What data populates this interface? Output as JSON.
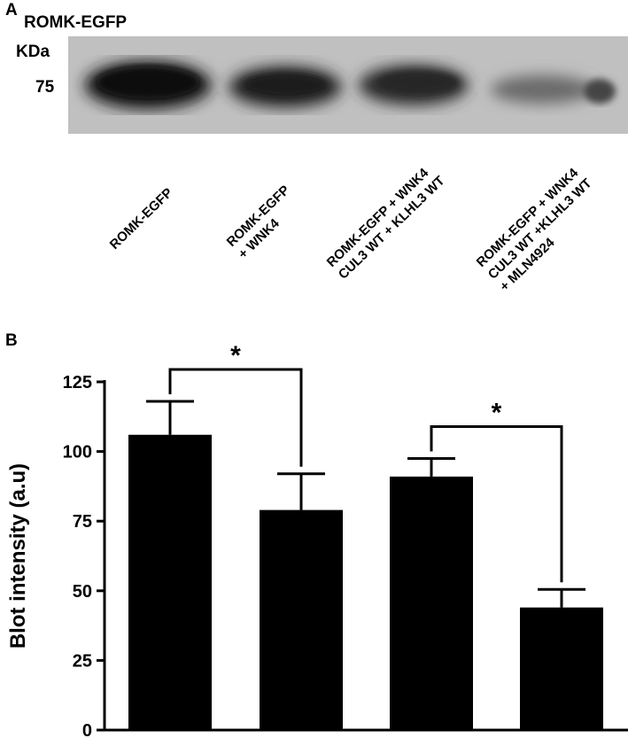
{
  "panel_a": {
    "letter": "A",
    "blot_title": "ROMK-EGFP",
    "unit": "KDa",
    "marker": "75",
    "lanes": [
      {
        "lines": [
          "ROMK-EGFP"
        ]
      },
      {
        "lines": [
          "ROMK-EGFP",
          "+ WNK4"
        ]
      },
      {
        "lines": [
          "ROMK-EGFP + WNK4",
          "CUL3 WT  + KLHL3 WT"
        ]
      },
      {
        "lines": [
          "ROMK-EGFP + WNK4",
          "CUL3 WT  +KLHL3 WT",
          "+ MLN4924"
        ]
      }
    ]
  },
  "panel_b": {
    "letter": "B"
  },
  "chart_data": {
    "type": "bar",
    "categories": [
      "",
      "",
      "",
      ""
    ],
    "values": [
      106,
      79,
      91,
      44
    ],
    "errors": [
      12,
      13,
      6.5,
      6.5
    ],
    "ylabel": "Blot intensity (a.u)",
    "ylim": [
      0,
      125
    ],
    "yticks": [
      "0",
      "25",
      "50",
      "75",
      "100",
      "125"
    ],
    "bar_color": "#000000",
    "grid": false,
    "significance": [
      {
        "from": 0,
        "to": 1,
        "label": "*"
      },
      {
        "from": 2,
        "to": 3,
        "label": "*"
      }
    ]
  }
}
